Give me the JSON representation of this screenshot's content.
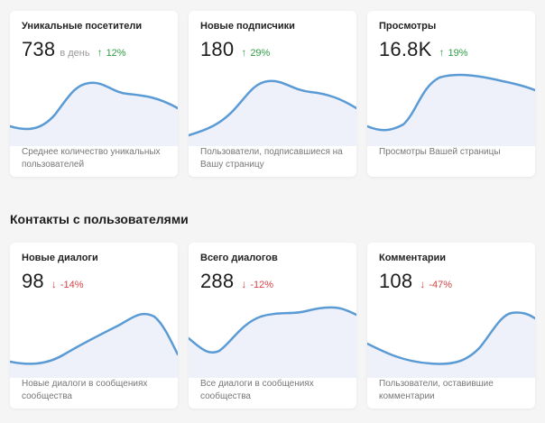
{
  "section_contacts": {
    "title": "Контакты с пользователями"
  },
  "cards": [
    {
      "title": "Уникальные посетители",
      "value": "738",
      "unit": "в день",
      "trend": "12%",
      "trend_direction": "up",
      "description": "Среднее количество уникальных пользователей"
    },
    {
      "title": "Новые подписчики",
      "value": "180",
      "unit": "",
      "trend": "29%",
      "trend_direction": "up",
      "description": "Пользователи, подписавшиеся на Вашу страницу"
    },
    {
      "title": "Просмотры",
      "value": "16.8K",
      "unit": "",
      "trend": "19%",
      "trend_direction": "up",
      "description": "Просмотры Вашей страницы"
    },
    {
      "title": "Новые диалоги",
      "value": "98",
      "unit": "",
      "trend": "-14%",
      "trend_direction": "down",
      "description": "Новые диалоги в сообщениях сообщества"
    },
    {
      "title": "Всего диалогов",
      "value": "288",
      "unit": "",
      "trend": "-12%",
      "trend_direction": "down",
      "description": "Все диалоги в сообщениях сообщества"
    },
    {
      "title": "Комментарии",
      "value": "108",
      "unit": "",
      "trend": "-47%",
      "trend_direction": "down",
      "description": "Пользователи, оставившие комментарии"
    }
  ],
  "colors": {
    "line": "#5b9bd5",
    "fill": "#eef1f9",
    "trend_up": "#2f9e44",
    "trend_down": "#d64545",
    "arrow_up_icon": "arrow-up-icon",
    "arrow_down_icon": "arrow-down-icon"
  }
}
